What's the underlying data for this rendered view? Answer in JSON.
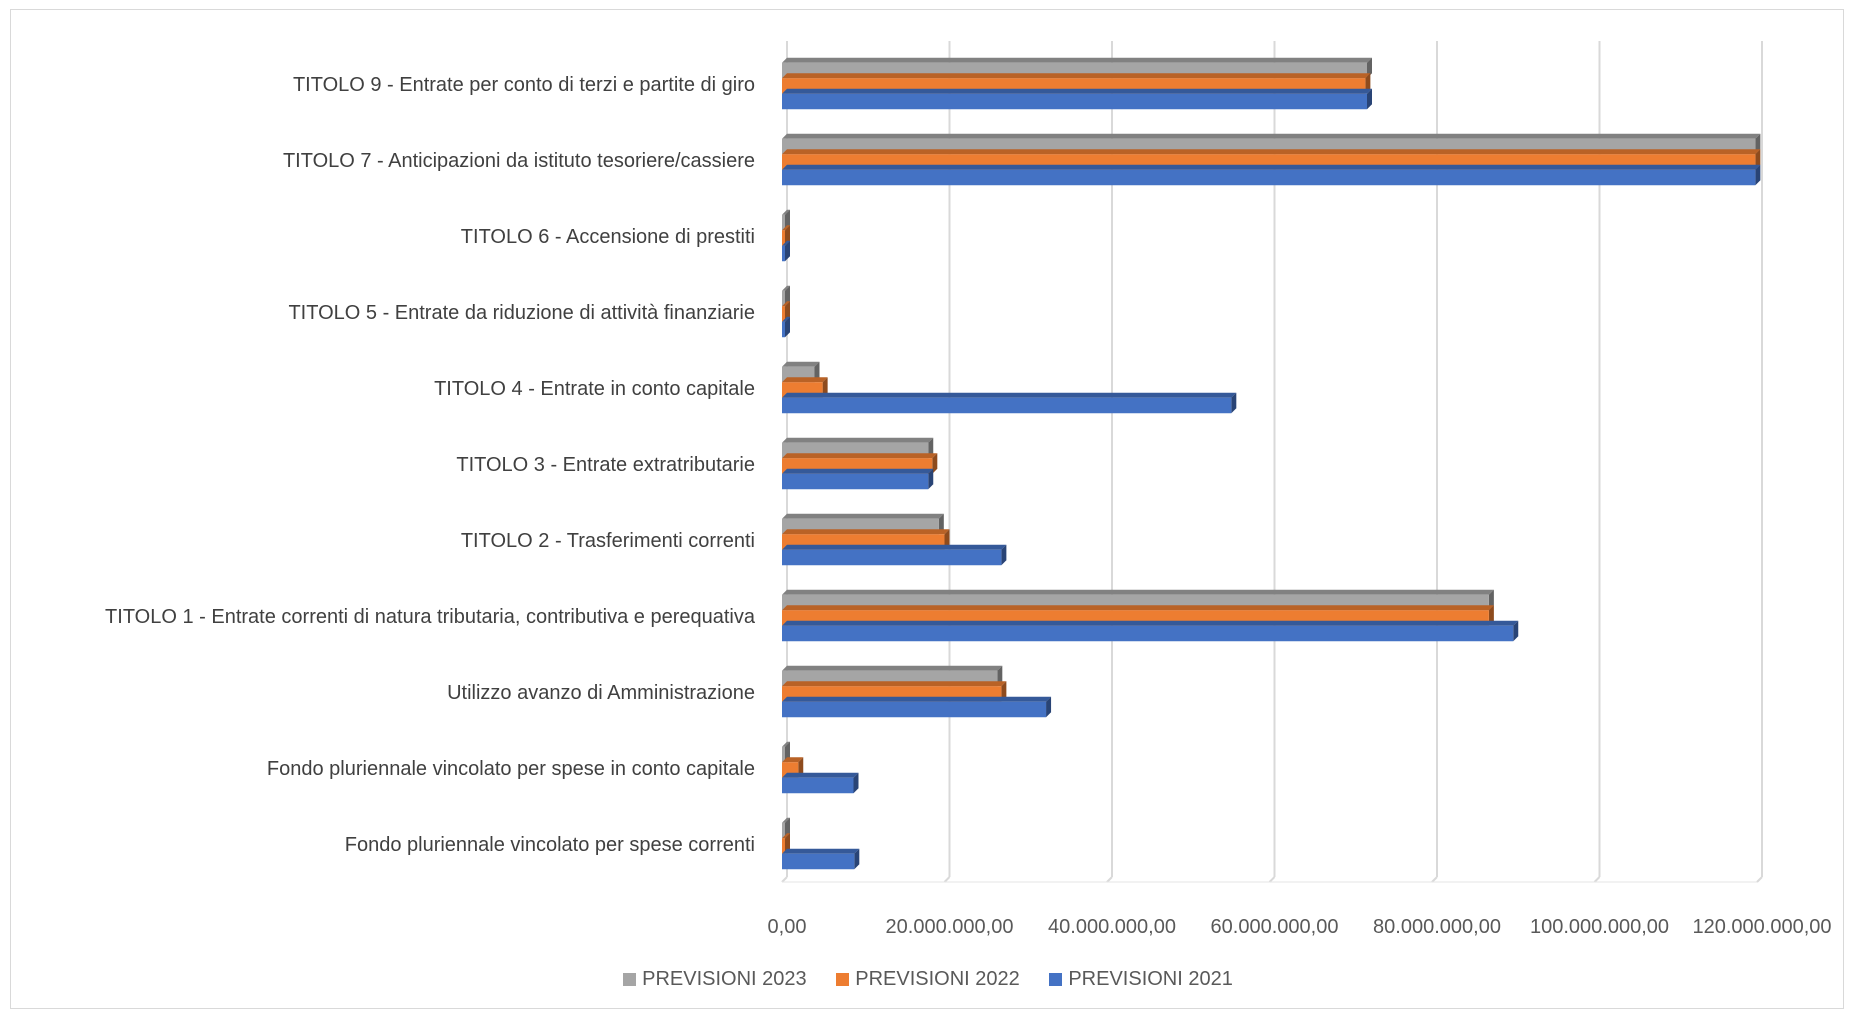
{
  "chart_data": {
    "type": "bar",
    "orientation": "horizontal",
    "title": "",
    "xlabel": "",
    "ylabel": "",
    "categories": [
      "TITOLO 9 - Entrate per conto di terzi e partite di giro",
      "TITOLO 7 - Anticipazioni da istituto tesoriere/cassiere",
      "TITOLO 6 - Accensione di prestiti",
      "TITOLO 5 - Entrate da riduzione di attività finanziarie",
      "TITOLO 4 - Entrate in conto capitale",
      "TITOLO 3 - Entrate extratributarie",
      "TITOLO 2 - Trasferimenti correnti",
      "TITOLO 1 - Entrate correnti di natura tributaria, contributiva e perequativa",
      "Utilizzo avanzo di Amministrazione",
      "Fondo pluriennale vincolato per spese in conto capitale",
      "Fondo pluriennale vincolato per spese correnti"
    ],
    "series": [
      {
        "name": "PREVISIONI 2023",
        "color": "#A5A5A5",
        "values": [
          72000000,
          119800000,
          0,
          0,
          4000000,
          18000000,
          19300000,
          87000000,
          26500000,
          0,
          0
        ]
      },
      {
        "name": "PREVISIONI 2022",
        "color": "#ED7D31",
        "values": [
          71800000,
          119800000,
          0,
          0,
          5000000,
          18500000,
          20000000,
          87000000,
          27000000,
          2000000,
          0
        ]
      },
      {
        "name": "PREVISIONI 2021",
        "color": "#4472C4",
        "values": [
          72000000,
          119800000,
          0,
          0,
          55300000,
          18000000,
          27000000,
          90000000,
          32500000,
          8800000,
          8900000
        ]
      }
    ],
    "xlim": [
      0,
      120000000
    ],
    "xticks": [
      "0,00",
      "20.000.000,00",
      "40.000.000,00",
      "60.000.000,00",
      "80.000.000,00",
      "100.000.000,00",
      "120.000.000,00"
    ],
    "xtick_values": [
      0,
      20000000,
      40000000,
      60000000,
      80000000,
      100000000,
      120000000
    ],
    "grid": "vertical",
    "legend_position": "bottom"
  }
}
